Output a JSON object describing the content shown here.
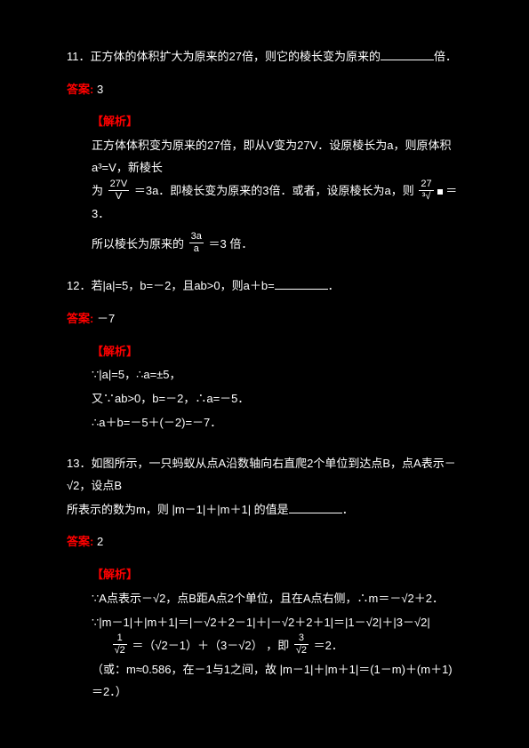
{
  "colors": {
    "bg": "#000000",
    "text": "#ffffff",
    "accent": "#ff0000"
  },
  "labels": {
    "answer": "答案:",
    "explain": "【解析】"
  },
  "q11": {
    "stem_prefix": "11．",
    "stem": "正方体的体积扩大为原来的27倍，则它的棱长变为原来的",
    "blank_suffix": "倍．",
    "answer": "3",
    "explain_l1": "正方体体积变为原来的27倍，即从V变为27V．设原棱长为a，则原体积a³=V，新棱长",
    "explain_l2_pre": "为",
    "explain_l2_mid": "＝3a．即棱长变为原来的3倍．或者，设原棱长为a，则",
    "explain_l2_post": "＝3．",
    "frac1": {
      "num": "27V",
      "den": "V"
    },
    "sqrt1": "27",
    "explain_last_pre": "所以棱长为原来的",
    "frac_last": {
      "num": "3a",
      "den": "a"
    },
    "explain_last_post": "＝3 倍．"
  },
  "q12": {
    "stem_prefix": "12．",
    "stem": "若|a|=5，b=－2，且ab>0，则a＋b=",
    "blank_suffix": "．",
    "answer": "－7",
    "explain_l1": "∵|a|=5，∴a=±5，",
    "explain_l2": "又∵ab>0，b=－2，∴a=－5．",
    "explain_l3": "∴a＋b=－5＋(－2)=－7．"
  },
  "q13": {
    "stem_prefix": "13．",
    "stem_l1": "如图所示，一只蚂蚁从点A沿数轴向右直爬2个单位到达点B，点A表示－√2，设点B",
    "stem_l2": "所表示的数为m，则 |m－1|＋|m＋1| 的值是",
    "blank_suffix": "．",
    "answer": "2",
    "explain_l1": "∵A点表示－√2，点B距A点2个单位，且在A点右侧，∴m＝－√2＋2．",
    "explain_l2": "∵|m－1|＋|m＋1|＝|－√2＋2－1|＋|－√2＋2＋1|＝|1－√2|＋|3－√2|",
    "frac_a": {
      "num": "1",
      "den": "√2"
    },
    "frac_b": {
      "num": "3",
      "den": "√2"
    },
    "explain_l3_pre": "＝（√2－1）＋（3－√2）",
    "explain_l3_comma": "，即",
    "explain_l3_post": "＝2．",
    "explain_l4": "（或：m≈0.586，在－1与1之间，故 |m－1|＋|m＋1|＝(1－m)＋(m＋1)＝2．）"
  }
}
